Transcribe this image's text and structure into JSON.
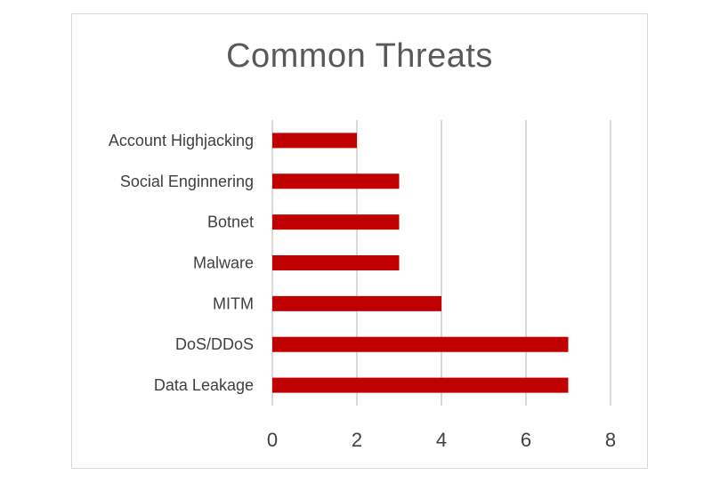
{
  "chart_data": {
    "type": "bar",
    "orientation": "horizontal",
    "title": "Common Threats",
    "xlabel": "",
    "ylabel": "",
    "categories": [
      "Account Highjacking",
      "Social Enginnering",
      "Botnet",
      "Malware",
      "MITM",
      "DoS/DDoS",
      "Data Leakage"
    ],
    "values": [
      2,
      3,
      3,
      3,
      4,
      7,
      7
    ],
    "xlim": [
      0,
      8
    ],
    "xticks": [
      "0",
      "2",
      "4",
      "6",
      "8"
    ],
    "grid": true,
    "legend": "none",
    "bar_color": "#c00000",
    "grid_color": "#d9d9d9"
  }
}
